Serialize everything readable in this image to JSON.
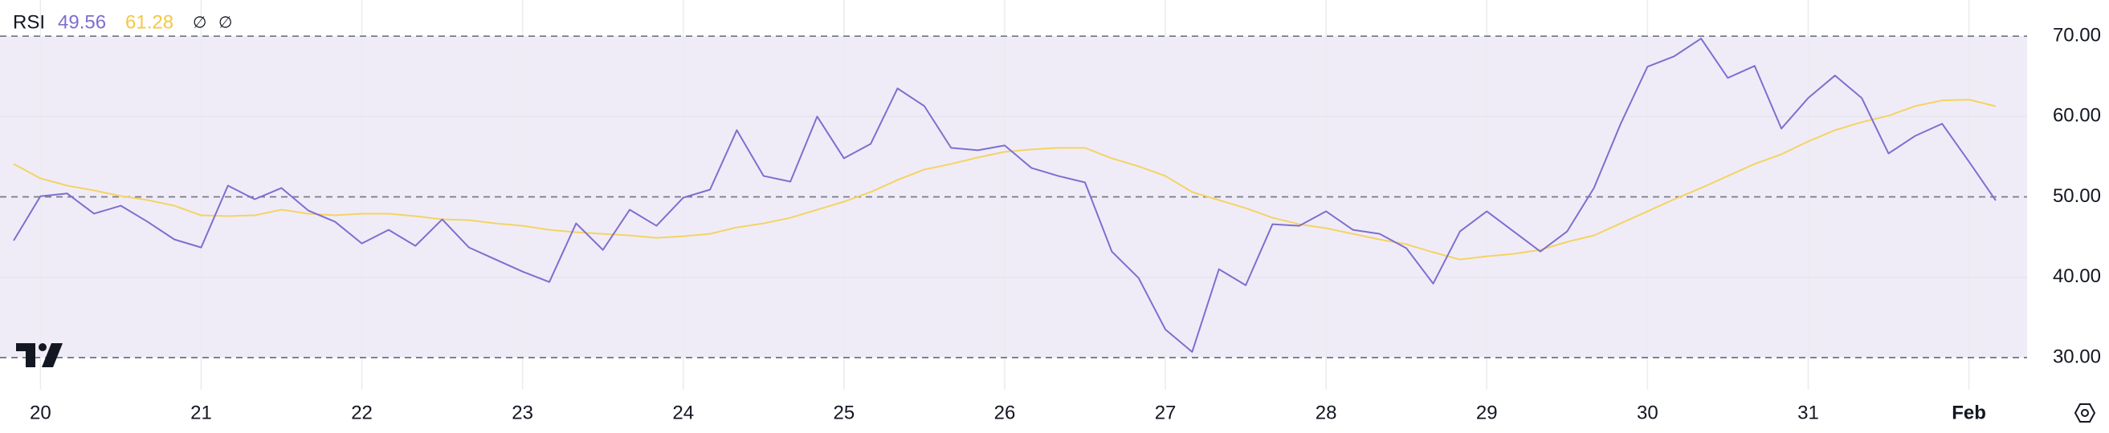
{
  "chart_data": {
    "type": "line",
    "title": "RSI",
    "legend_values": [
      "49.56",
      "61.28"
    ],
    "legend_icons": [
      "∅",
      "∅"
    ],
    "categories": [
      null,
      "20",
      null,
      null,
      null,
      null,
      null,
      "21",
      null,
      null,
      null,
      null,
      null,
      "22",
      null,
      null,
      null,
      null,
      null,
      "23",
      null,
      null,
      null,
      null,
      null,
      "24",
      null,
      null,
      null,
      null,
      null,
      "25",
      null,
      null,
      null,
      null,
      null,
      "26",
      null,
      null,
      null,
      null,
      null,
      "27",
      null,
      null,
      null,
      null,
      null,
      "28",
      null,
      null,
      null,
      null,
      null,
      "29",
      null,
      null,
      null,
      null,
      null,
      "30",
      null,
      null,
      null,
      null,
      null,
      "31",
      null,
      null,
      null,
      null,
      null,
      "Feb",
      null
    ],
    "series": [
      {
        "name": "RSI",
        "color": "#7e6fcf",
        "values": [
          44.56,
          50.08,
          50.42,
          47.91,
          48.9,
          46.9,
          44.7,
          43.7,
          51.4,
          49.7,
          51.1,
          48.3,
          46.9,
          44.2,
          45.9,
          43.9,
          47.2,
          43.7,
          42.2,
          40.7,
          39.4,
          46.7,
          43.4,
          48.4,
          46.4,
          49.9,
          50.9,
          58.3,
          52.6,
          51.9,
          60.0,
          54.8,
          56.6,
          63.5,
          61.3,
          56.1,
          55.8,
          56.4,
          53.6,
          52.6,
          51.8,
          43.2,
          39.9,
          33.5,
          30.7,
          41.0,
          39.0,
          46.6,
          46.4,
          48.2,
          45.9,
          45.4,
          43.6,
          39.2,
          45.7,
          48.2,
          45.7,
          43.2,
          45.7,
          51.1,
          59.1,
          66.2,
          67.5,
          69.7,
          64.8,
          66.3,
          58.5,
          62.3,
          65.1,
          62.3,
          55.4,
          57.6,
          59.1,
          54.4,
          49.56
        ]
      },
      {
        "color": "#f5d361",
        "values": [
          54.1,
          52.3,
          51.4,
          50.8,
          50.1,
          49.6,
          48.9,
          47.7,
          47.6,
          47.7,
          48.4,
          47.9,
          47.7,
          47.9,
          47.9,
          47.6,
          47.2,
          47.1,
          46.7,
          46.4,
          45.9,
          45.6,
          45.4,
          45.2,
          44.9,
          45.1,
          45.4,
          46.2,
          46.7,
          47.4,
          48.4,
          49.4,
          50.6,
          52.1,
          53.4,
          54.1,
          54.9,
          55.6,
          55.9,
          56.1,
          56.1,
          54.8,
          53.8,
          52.6,
          50.6,
          49.6,
          48.6,
          47.4,
          46.6,
          46.1,
          45.4,
          44.7,
          44.1,
          43.1,
          42.2,
          42.6,
          42.9,
          43.4,
          44.4,
          45.2,
          46.7,
          48.2,
          49.7,
          51.1,
          52.6,
          54.1,
          55.3,
          56.9,
          58.3,
          59.3,
          60.1,
          61.3,
          62.0,
          62.1,
          61.28
        ]
      }
    ],
    "ylim": [
      26,
      74.5
    ],
    "yticks": [
      {
        "value": 30,
        "label": "30.00"
      },
      {
        "value": 40,
        "label": "40.00"
      },
      {
        "value": 50,
        "label": "50.00"
      },
      {
        "value": 60,
        "label": "60.00"
      },
      {
        "value": 70,
        "label": "70.00"
      }
    ],
    "band": [
      30,
      70
    ],
    "band_color": "#efecf8",
    "dashed_levels": [
      30,
      50,
      70
    ],
    "grid": true
  }
}
